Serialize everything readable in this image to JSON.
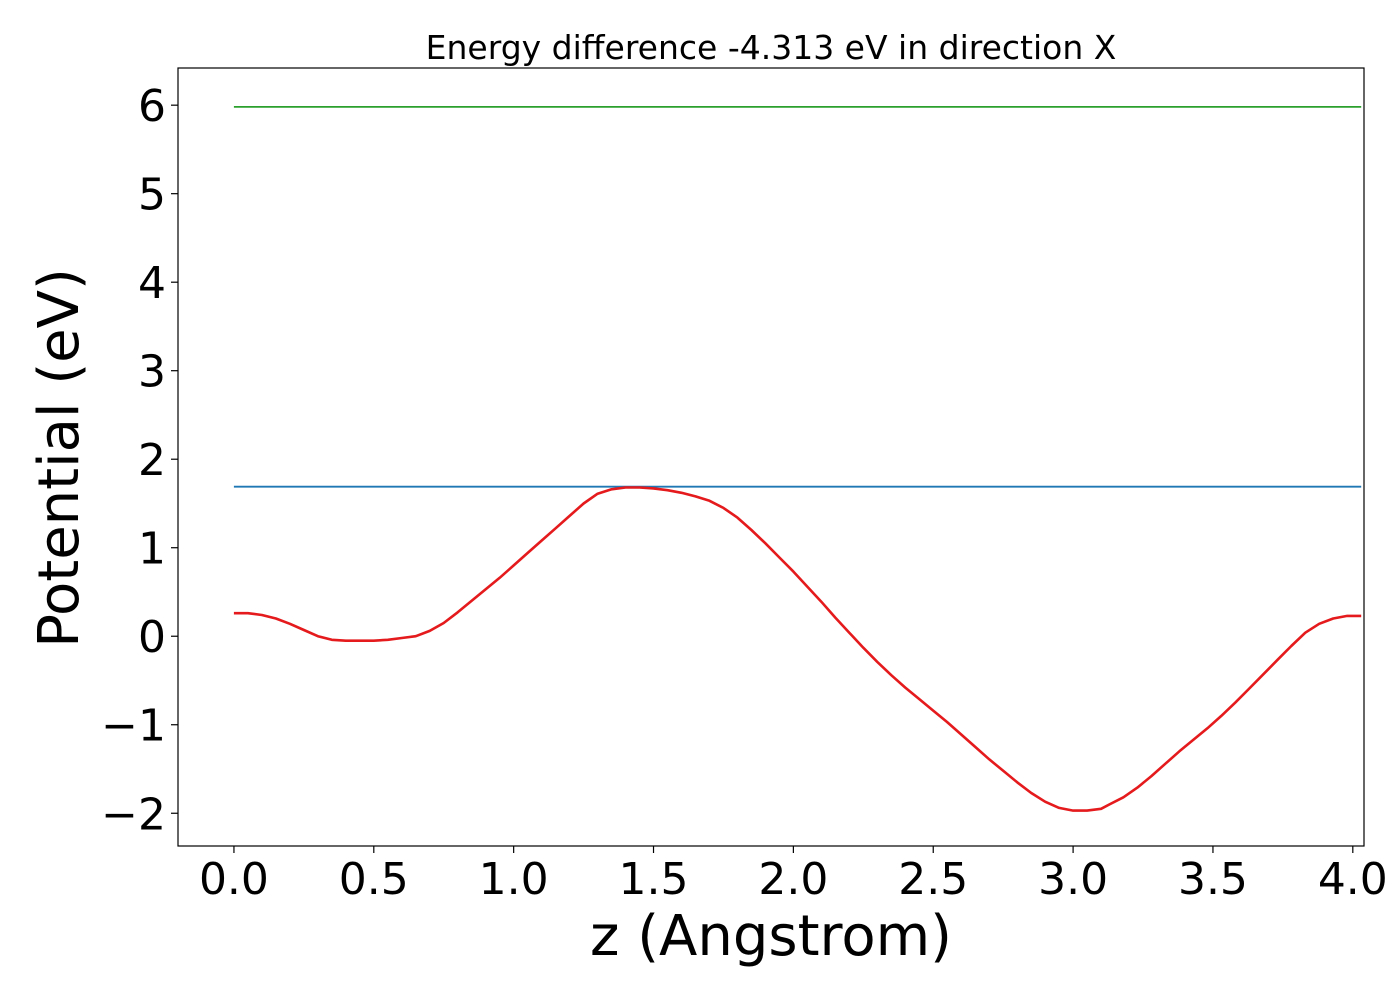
{
  "chart_data": {
    "type": "line",
    "title": "Energy difference -4.313 eV in direction X",
    "xlabel": "z (Angstrom)",
    "ylabel": "Potential (eV)",
    "xlim": [
      -0.2,
      4.04
    ],
    "ylim": [
      -2.37,
      6.42
    ],
    "x_ticks": [
      0.0,
      0.5,
      1.0,
      1.5,
      2.0,
      2.5,
      3.0,
      3.5,
      4.0
    ],
    "x_tick_labels": [
      "0.0",
      "0.5",
      "1.0",
      "1.5",
      "2.0",
      "2.5",
      "3.0",
      "3.5",
      "4.0"
    ],
    "y_ticks": [
      -2,
      -1,
      0,
      1,
      2,
      3,
      4,
      5,
      6
    ],
    "y_tick_labels": [
      "−2",
      "−1",
      "0",
      "1",
      "2",
      "3",
      "4",
      "5",
      "6"
    ],
    "grid": false,
    "series": [
      {
        "color": "#2ca02c",
        "x": [
          0.0,
          4.03
        ],
        "y": [
          5.98,
          5.98
        ]
      },
      {
        "color": "#1f77b4",
        "x": [
          0.0,
          4.03
        ],
        "y": [
          1.69,
          1.69
        ]
      },
      {
        "color": "#e41a1c",
        "x": [
          0.0,
          0.05,
          0.1,
          0.15,
          0.2,
          0.25,
          0.3,
          0.35,
          0.4,
          0.45,
          0.5,
          0.55,
          0.6,
          0.65,
          0.7,
          0.75,
          0.8,
          0.85,
          0.9,
          0.95,
          1.0,
          1.05,
          1.1,
          1.15,
          1.2,
          1.25,
          1.3,
          1.35,
          1.4,
          1.45,
          1.5,
          1.55,
          1.6,
          1.65,
          1.7,
          1.75,
          1.8,
          1.85,
          1.9,
          1.95,
          2.0,
          2.05,
          2.1,
          2.15,
          2.2,
          2.25,
          2.3,
          2.35,
          2.4,
          2.45,
          2.5,
          2.55,
          2.6,
          2.65,
          2.7,
          2.75,
          2.8,
          2.85,
          2.9,
          2.95,
          3.0,
          3.05,
          3.1,
          3.13,
          3.18,
          3.23,
          3.28,
          3.33,
          3.38,
          3.43,
          3.48,
          3.53,
          3.58,
          3.63,
          3.68,
          3.73,
          3.78,
          3.83,
          3.88,
          3.93,
          3.98,
          4.03
        ],
        "y": [
          0.26,
          0.26,
          0.24,
          0.2,
          0.14,
          0.07,
          0.0,
          -0.04,
          -0.05,
          -0.05,
          -0.05,
          -0.04,
          -0.02,
          0.0,
          0.06,
          0.15,
          0.27,
          0.4,
          0.53,
          0.66,
          0.8,
          0.94,
          1.08,
          1.22,
          1.36,
          1.5,
          1.61,
          1.66,
          1.68,
          1.68,
          1.67,
          1.65,
          1.62,
          1.58,
          1.53,
          1.45,
          1.34,
          1.2,
          1.05,
          0.89,
          0.73,
          0.56,
          0.39,
          0.21,
          0.04,
          -0.13,
          -0.29,
          -0.44,
          -0.58,
          -0.71,
          -0.84,
          -0.97,
          -1.11,
          -1.25,
          -1.39,
          -1.52,
          -1.65,
          -1.77,
          -1.87,
          -1.94,
          -1.97,
          -1.97,
          -1.95,
          -1.9,
          -1.82,
          -1.71,
          -1.58,
          -1.44,
          -1.3,
          -1.17,
          -1.04,
          -0.9,
          -0.75,
          -0.59,
          -0.43,
          -0.27,
          -0.11,
          0.04,
          0.14,
          0.2,
          0.23,
          0.23
        ]
      }
    ]
  }
}
